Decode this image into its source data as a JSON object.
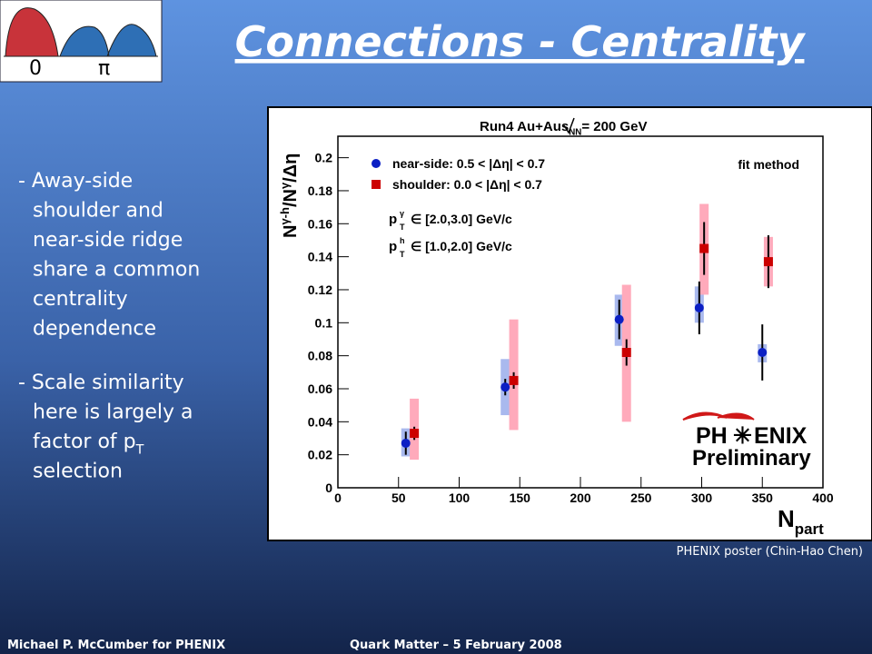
{
  "slide": {
    "title": "Connections - Centrality",
    "logo": [
      "0",
      "π"
    ],
    "bullets": [
      [
        "- Away-side",
        "shoulder and",
        "near-side ridge",
        "share a common",
        "centrality",
        "dependence"
      ],
      [
        "- Scale similarity",
        "here is largely a",
        [
          "factor of p",
          "T"
        ],
        "selection"
      ]
    ],
    "credit": "PHENIX poster (Chin-Hao Chen)",
    "footer": [
      "Michael P. McCumber for PHENIX",
      "Quark Matter – 5 February 2008"
    ]
  },
  "chart_data": {
    "type": "scatter",
    "header": [
      "Run4 Au+Au",
      "s",
      "NN",
      "= 200 GeV"
    ],
    "method": "fit method",
    "annotations": [
      [
        "p",
        "T",
        "γ",
        "∈ [2.0,3.0] GeV/c"
      ],
      [
        "p",
        "T",
        "h",
        "∈ [1.0,2.0] GeV/c"
      ]
    ],
    "ylabel": [
      "N",
      "γ-h",
      "/N",
      "γ",
      "/Δη"
    ],
    "xlabel": [
      "N",
      "part"
    ],
    "logo": [
      "PH",
      "ENIX",
      "Preliminary"
    ],
    "xlim": [
      0,
      400
    ],
    "xticks": [
      0,
      50,
      100,
      150,
      200,
      250,
      300,
      350,
      400
    ],
    "ylim": [
      0,
      0.213
    ],
    "yticks": [
      0,
      0.02,
      0.04,
      0.06,
      0.08,
      0.1,
      0.12,
      0.14,
      0.16,
      0.18,
      0.2
    ],
    "series": [
      {
        "name": "near-side: 0.5 < |Δη| < 0.7",
        "color": "#0b1fc4",
        "marker": "circle",
        "sys_color": "#a9b9ee",
        "x": [
          56,
          138,
          232,
          298,
          350
        ],
        "values": [
          0.027,
          0.061,
          0.102,
          0.109,
          0.082
        ],
        "errors": [
          0.007,
          0.005,
          0.012,
          0.016,
          0.017
        ],
        "sys_low": [
          0.019,
          0.044,
          0.086,
          0.1,
          0.076
        ],
        "sys_high": [
          0.036,
          0.078,
          0.117,
          0.122,
          0.087
        ]
      },
      {
        "name": "shoulder: 0.0 < |Δη| < 0.7",
        "color": "#cc0000",
        "marker": "square",
        "sys_color": "#ffaabb",
        "x": [
          63,
          145,
          238,
          302,
          355
        ],
        "values": [
          0.033,
          0.065,
          0.082,
          0.145,
          0.137
        ],
        "errors": [
          0.004,
          0.005,
          0.008,
          0.016,
          0.016
        ],
        "sys_low": [
          0.017,
          0.035,
          0.04,
          0.117,
          0.122
        ],
        "sys_high": [
          0.054,
          0.102,
          0.123,
          0.172,
          0.152
        ]
      }
    ]
  }
}
